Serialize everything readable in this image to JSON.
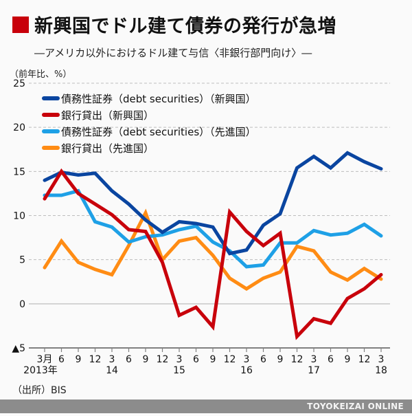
{
  "header": {
    "title": "新興国でドル建て債券の発行が急増",
    "subtitle": "―アメリカ以外におけるドル建て与信〈非銀行部門向け〉―",
    "accent_color": "#c8000b"
  },
  "source": "（出所）BIS",
  "footer": {
    "brand": "TOYOKEIZAI ONLINE"
  },
  "chart_data": {
    "type": "line",
    "title": "新興国でドル建て債券の発行が急増",
    "subtitle": "アメリカ以外におけるドル建て与信〈非銀行部門向け〉",
    "ylabel": "（前年比、%）",
    "xlabel": "",
    "ylim": [
      -5,
      25
    ],
    "yticks": [
      25,
      20,
      15,
      10,
      5,
      0,
      -5
    ],
    "ytick_labels": [
      "25",
      "20",
      "15",
      "10",
      "5",
      "0",
      "▲5"
    ],
    "grid": "horizontal dashed",
    "legend_position": "top-left",
    "x": [
      "2013-03",
      "2013-06",
      "2013-09",
      "2013-12",
      "2014-03",
      "2014-06",
      "2014-09",
      "2014-12",
      "2015-03",
      "2015-06",
      "2015-09",
      "2015-12",
      "2016-03",
      "2016-06",
      "2016-09",
      "2016-12",
      "2017-03",
      "2017-06",
      "2017-09",
      "2017-12",
      "2018-03"
    ],
    "xtick_labels": [
      "3月",
      "6",
      "9",
      "12",
      "3",
      "6",
      "9",
      "12",
      "3",
      "6",
      "9",
      "12",
      "3",
      "6",
      "9",
      "12",
      "3",
      "6",
      "9",
      "12",
      "3"
    ],
    "xtick_year_labels": [
      "2013年",
      "",
      "",
      "",
      "14",
      "",
      "",
      "",
      "15",
      "",
      "",
      "",
      "16",
      "",
      "",
      "",
      "17",
      "",
      "",
      "",
      "18"
    ],
    "series": [
      {
        "name": "債務性証券（debt securities）（新興国）",
        "color": "#0a45a0",
        "values": [
          14.0,
          14.9,
          14.6,
          14.8,
          12.8,
          11.3,
          9.5,
          8.1,
          9.3,
          9.1,
          8.7,
          5.7,
          6.1,
          8.9,
          10.2,
          15.4,
          16.7,
          15.4,
          17.1,
          16.1,
          15.3
        ]
      },
      {
        "name": "銀行貸出（新興国）",
        "color": "#c8000b",
        "values": [
          11.9,
          15.0,
          12.5,
          11.3,
          10.1,
          8.4,
          8.2,
          4.7,
          -1.3,
          -0.4,
          -2.6,
          10.4,
          8.2,
          6.6,
          8.0,
          -3.7,
          -1.7,
          -2.2,
          0.6,
          1.7,
          3.3
        ]
      },
      {
        "name": "債務性証券（debt securities）（先進国）",
        "color": "#1ea0e6",
        "values": [
          12.3,
          12.3,
          12.8,
          9.3,
          8.7,
          7.0,
          7.6,
          7.8,
          8.4,
          8.8,
          7.0,
          6.0,
          4.2,
          4.4,
          6.9,
          6.9,
          8.3,
          7.8,
          8.0,
          9.0,
          7.7
        ]
      },
      {
        "name": "銀行貸出（先進国）",
        "color": "#ff8c14",
        "values": [
          4.1,
          7.1,
          4.7,
          3.9,
          3.3,
          6.6,
          10.3,
          5.0,
          7.1,
          7.5,
          5.5,
          2.9,
          1.7,
          2.9,
          3.6,
          6.5,
          6.0,
          3.6,
          2.7,
          4.0,
          2.8
        ]
      }
    ]
  }
}
